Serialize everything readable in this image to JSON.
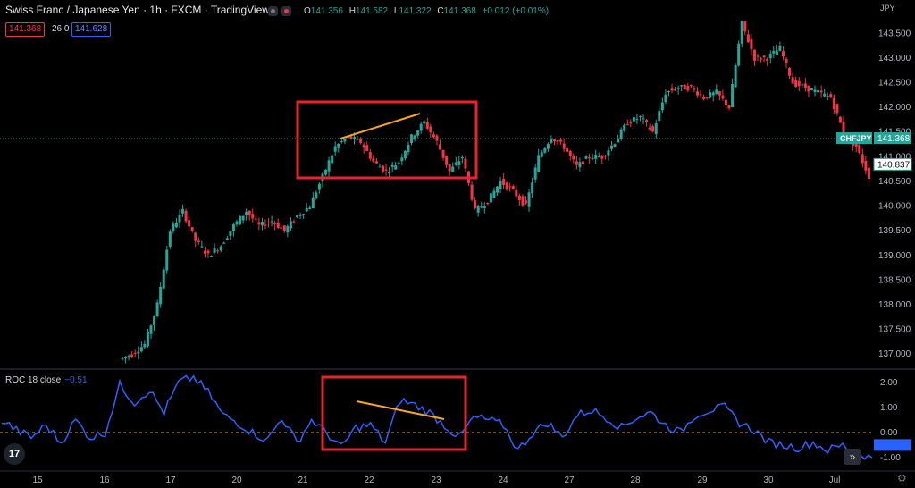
{
  "header": {
    "title": "Swiss Franc / Japanese Yen · 1h · FXCM · TradingView",
    "ohlc": {
      "o_label": "O",
      "o": "141.356",
      "h_label": "H",
      "h": "141.582",
      "l_label": "L",
      "l": "141.322",
      "c_label": "C",
      "c": "141.368",
      "change": "+0.012 (+0.01%)"
    },
    "bid": "141.368",
    "spread": "26.0",
    "ask": "141.628"
  },
  "axis": {
    "currency": "JPY",
    "price_labels": [
      "143.500",
      "143.000",
      "142.500",
      "142.000",
      "141.500",
      "141.000",
      "140.500",
      "140.000",
      "139.500",
      "139.000",
      "138.500",
      "138.000",
      "137.500",
      "137.000"
    ],
    "symbol_tag": "CHFJPY",
    "current_price": "141.368",
    "ref_price": "140.837",
    "roc_labels": [
      "2.00",
      "1.00",
      "0.00",
      "-1.00"
    ],
    "dates": [
      "15",
      "16",
      "17",
      "20",
      "21",
      "22",
      "23",
      "24",
      "27",
      "28",
      "29",
      "30",
      "Jul"
    ]
  },
  "indicator": {
    "label": "ROC 18 close",
    "value": "−0.51"
  },
  "colors": {
    "up": "#26a69a",
    "down": "#f23645",
    "roc": "#2962ff",
    "annot_box": "#e8232a",
    "trend": "#f5a623"
  },
  "icons": {
    "logo": "tradingview-logo-icon",
    "forward": "double-chevron-right-icon",
    "settings": "gear-icon"
  },
  "chart_data": {
    "type": "candlestick",
    "price_axis": {
      "min": 136.75,
      "max": 143.85
    },
    "close_path": [
      136.9,
      137.0,
      137.2,
      138.0,
      139.5,
      139.9,
      139.3,
      139.0,
      139.2,
      139.6,
      139.9,
      139.6,
      139.7,
      139.5,
      139.8,
      140.0,
      140.6,
      141.2,
      141.4,
      141.3,
      140.9,
      140.7,
      140.9,
      141.4,
      141.7,
      141.3,
      140.7,
      141.0,
      139.9,
      140.1,
      140.5,
      140.3,
      140.0,
      141.0,
      141.4,
      141.2,
      140.8,
      141.0,
      141.0,
      141.3,
      141.7,
      141.8,
      141.5,
      142.3,
      142.4,
      142.4,
      142.2,
      142.3,
      142.0,
      143.7,
      143.0,
      143.0,
      143.2,
      142.5,
      142.4,
      142.3,
      142.2,
      141.5,
      141.2,
      140.6
    ],
    "roc_path": [
      0.5,
      0.1,
      -0.2,
      0.3,
      -0.4,
      0.5,
      -0.2,
      0.0,
      1.9,
      1.2,
      1.7,
      0.8,
      2.0,
      2.2,
      1.6,
      0.7,
      0.4,
      0.0,
      -0.3,
      0.6,
      -0.4,
      0.5,
      0.0,
      -0.6,
      0.2,
      0.3,
      -0.4,
      1.3,
      1.1,
      0.8,
      0.3,
      -0.2,
      0.6,
      0.5,
      0.3,
      -0.7,
      0.0,
      0.4,
      -0.2,
      0.7,
      0.9,
      0.6,
      0.2,
      0.6,
      0.8,
      0.3,
      0.0,
      0.7,
      0.9,
      1.0,
      0.4,
      0.1,
      -0.4,
      -0.5,
      -0.6,
      -0.4,
      -0.7,
      -0.5,
      -0.8,
      -1.0
    ]
  }
}
